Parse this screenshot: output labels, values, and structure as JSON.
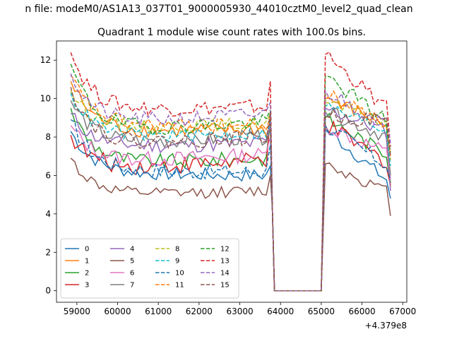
{
  "chart_data": {
    "type": "line",
    "suptitle": "n file: modeM0/AS1A13_037T01_9000005930_44010cztM0_level2_quad_clean",
    "title": "Quadrant 1 module wise count rates with 100.0s bins.",
    "xlabel": "",
    "ylabel": "",
    "x_offset_label": "+4.379e8",
    "xlim": [
      58500,
      67100
    ],
    "ylim": [
      -0.6,
      13.0
    ],
    "x_ticks": [
      59000,
      60000,
      61000,
      62000,
      63000,
      64000,
      65000,
      66000,
      67000
    ],
    "x_tick_labels": [
      "59000",
      "60000",
      "61000",
      "62000",
      "63000",
      "64000",
      "65000",
      "66000",
      "67000"
    ],
    "y_ticks": [
      0,
      2,
      4,
      6,
      8,
      10,
      12
    ],
    "y_tick_labels": [
      "0",
      "2",
      "4",
      "6",
      "8",
      "10",
      "12"
    ],
    "grid": false,
    "legend_placement": "lower-left",
    "legend_columns": 4,
    "segment1": {
      "x_start": 58850,
      "x_end": 63750,
      "step": 100
    },
    "gap_x": [
      63850,
      65000
    ],
    "segment2": {
      "x_start": 65100,
      "x_end": 66650,
      "step": 100
    },
    "series": [
      {
        "name": "0",
        "color": "#1f77b4",
        "dash": "solid",
        "start": 8.3,
        "level": 6.1,
        "late_level": 6.0,
        "noise": 0.35,
        "spike": 6.5,
        "tail_start": 8.4,
        "tail_end": 5.6,
        "end": 4.8
      },
      {
        "name": "1",
        "color": "#ff7f0e",
        "dash": "solid",
        "start": 10.9,
        "level": 8.2,
        "late_level": 8.4,
        "noise": 0.4,
        "spike": 8.6,
        "tail_start": 10.0,
        "tail_end": 8.6,
        "end": 5.4
      },
      {
        "name": "2",
        "color": "#2ca02c",
        "dash": "solid",
        "start": 9.5,
        "level": 6.5,
        "late_level": 6.9,
        "noise": 0.4,
        "spike": 8.8,
        "tail_start": 9.0,
        "tail_end": 7.0,
        "end": 5.6
      },
      {
        "name": "3",
        "color": "#d62728",
        "dash": "solid",
        "start": 8.1,
        "level": 6.2,
        "late_level": 6.8,
        "noise": 0.45,
        "spike": 9.2,
        "tail_start": 8.6,
        "tail_end": 6.6,
        "end": 5.5
      },
      {
        "name": "4",
        "color": "#9467bd",
        "dash": "solid",
        "start": 9.2,
        "level": 7.4,
        "late_level": 7.7,
        "noise": 0.4,
        "spike": 8.6,
        "tail_start": 9.5,
        "tail_end": 8.2,
        "end": 5.2
      },
      {
        "name": "5",
        "color": "#8c564b",
        "dash": "solid",
        "start": 6.9,
        "level": 4.9,
        "late_level": 5.2,
        "noise": 0.3,
        "spike": 6.0,
        "tail_start": 6.6,
        "tail_end": 5.1,
        "end": 3.9
      },
      {
        "name": "6",
        "color": "#e377c2",
        "dash": "solid",
        "start": 8.6,
        "level": 6.6,
        "late_level": 7.1,
        "noise": 0.4,
        "spike": 8.0,
        "tail_start": 8.6,
        "tail_end": 7.1,
        "end": 5.8
      },
      {
        "name": "7",
        "color": "#7f7f7f",
        "dash": "solid",
        "start": 9.9,
        "level": 7.6,
        "late_level": 8.0,
        "noise": 0.4,
        "spike": 8.4,
        "tail_start": 9.3,
        "tail_end": 8.0,
        "end": 6.0
      },
      {
        "name": "8",
        "color": "#bcbd22",
        "dash": "dashed",
        "start": 10.4,
        "level": 8.4,
        "late_level": 8.7,
        "noise": 0.35,
        "spike": 9.2,
        "tail_start": 9.8,
        "tail_end": 8.7,
        "end": 6.8
      },
      {
        "name": "9",
        "color": "#17becf",
        "dash": "dashed",
        "start": 10.3,
        "level": 7.9,
        "late_level": 8.2,
        "noise": 0.35,
        "spike": 8.8,
        "tail_start": 9.6,
        "tail_end": 8.3,
        "end": 6.5
      },
      {
        "name": "10",
        "color": "#1f77b4",
        "dash": "dashed",
        "start": 8.9,
        "level": 6.2,
        "late_level": 6.2,
        "noise": 0.4,
        "spike": 7.6,
        "tail_start": 8.6,
        "tail_end": 6.4,
        "end": 5.8
      },
      {
        "name": "11",
        "color": "#ff7f0e",
        "dash": "dashed",
        "start": 11.2,
        "level": 8.5,
        "late_level": 8.6,
        "noise": 0.4,
        "spike": 9.1,
        "tail_start": 10.2,
        "tail_end": 8.7,
        "end": 7.0
      },
      {
        "name": "12",
        "color": "#2ca02c",
        "dash": "dashed",
        "start": 11.8,
        "level": 8.2,
        "late_level": 8.8,
        "noise": 0.4,
        "spike": 9.4,
        "tail_start": 11.2,
        "tail_end": 8.7,
        "end": 7.2
      },
      {
        "name": "13",
        "color": "#d62728",
        "dash": "dashed",
        "start": 12.4,
        "level": 9.3,
        "late_level": 9.6,
        "noise": 0.4,
        "spike": 10.9,
        "tail_start": 12.3,
        "tail_end": 9.3,
        "end": 7.5
      },
      {
        "name": "14",
        "color": "#9467bd",
        "dash": "dashed",
        "start": 11.3,
        "level": 8.6,
        "late_level": 9.2,
        "noise": 0.4,
        "spike": 9.8,
        "tail_start": 10.4,
        "tail_end": 8.6,
        "end": 7.7
      },
      {
        "name": "15",
        "color": "#8c564b",
        "dash": "dashed",
        "start": 10.6,
        "level": 7.5,
        "late_level": 8.0,
        "noise": 0.4,
        "spike": 9.3,
        "tail_start": 9.1,
        "tail_end": 8.8,
        "end": 7.0
      }
    ]
  }
}
